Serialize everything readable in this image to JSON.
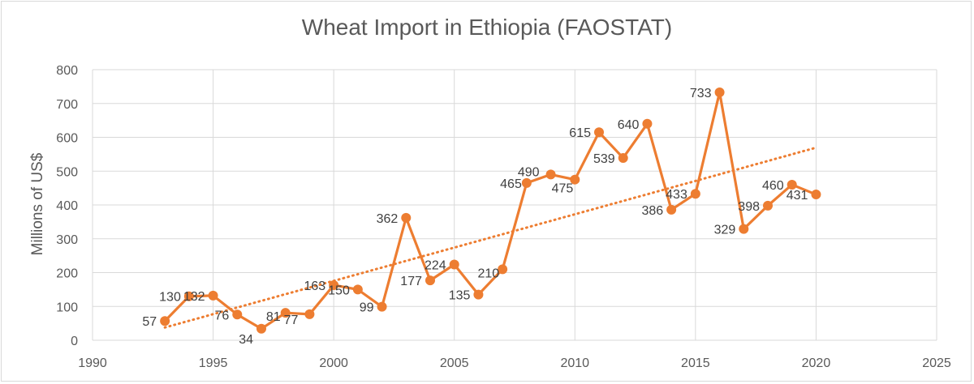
{
  "chart_data": {
    "type": "line",
    "title": "Wheat Import in Ethiopia (FAOSTAT)",
    "xlabel": "",
    "ylabel": "Millions of US$",
    "xlim": [
      1990,
      2025
    ],
    "ylim": [
      0,
      800
    ],
    "x_ticks": [
      1990,
      1995,
      2000,
      2005,
      2010,
      2015,
      2020,
      2025
    ],
    "y_ticks": [
      0,
      100,
      200,
      300,
      400,
      500,
      600,
      700,
      800
    ],
    "grid": true,
    "legend": "none",
    "colors": {
      "series": "#ED7D31",
      "grid": "#d9d9d9",
      "text": "#595959"
    },
    "series": [
      {
        "x": [
          1993,
          1994,
          1995,
          1996,
          1997,
          1998,
          1999,
          2000,
          2001,
          2002,
          2003,
          2004,
          2005,
          2006,
          2007,
          2008,
          2009,
          2010,
          2011,
          2012,
          2013,
          2014,
          2015,
          2016,
          2017,
          2018,
          2019,
          2020
        ],
        "values": [
          57,
          130,
          132,
          76,
          34,
          81,
          77,
          163,
          150,
          99,
          362,
          177,
          224,
          135,
          210,
          465,
          490,
          475,
          615,
          539,
          640,
          386,
          433,
          733,
          329,
          398,
          460,
          431
        ],
        "data_labels": [
          "57",
          "130",
          "132",
          "76",
          "34",
          "81",
          "77",
          "163",
          "150",
          "99",
          "362",
          "177",
          "224",
          "135",
          "210",
          "465",
          "490",
          "475",
          "615",
          "539",
          "640",
          "386",
          "433",
          "733",
          "329",
          "398",
          "460",
          "431"
        ]
      }
    ],
    "trendline": {
      "type": "linear",
      "style": "dotted",
      "x_range": [
        1993,
        2020
      ]
    }
  }
}
